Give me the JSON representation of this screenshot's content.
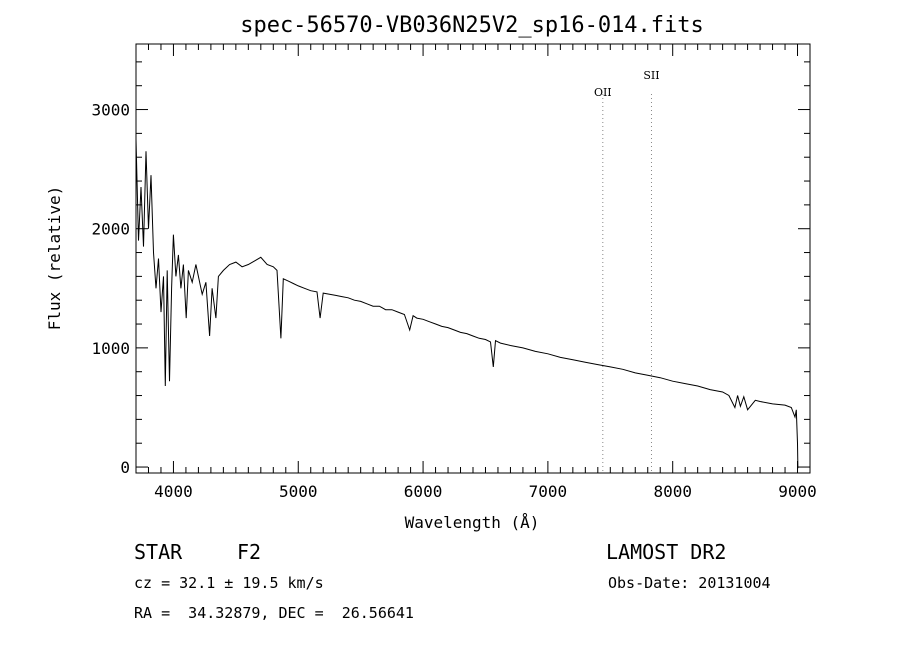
{
  "chart_data": {
    "type": "line",
    "title": "spec-56570-VB036N25V2_sp16-014.fits",
    "xlabel": "Wavelength (Å)",
    "ylabel": "Flux (relative)",
    "xlim": [
      3700,
      9100
    ],
    "ylim": [
      -50,
      3550
    ],
    "x_ticks": [
      4000,
      5000,
      6000,
      7000,
      8000,
      9000
    ],
    "y_ticks": [
      0,
      1000,
      2000,
      3000
    ],
    "grid": false,
    "series": [
      {
        "x": [
          3700,
          3720,
          3740,
          3760,
          3780,
          3800,
          3820,
          3840,
          3860,
          3880,
          3900,
          3920,
          3935,
          3950,
          3968,
          3985,
          4000,
          4020,
          4040,
          4060,
          4080,
          4102,
          4120,
          4150,
          4180,
          4200,
          4230,
          4260,
          4290,
          4310,
          4340,
          4360,
          4400,
          4450,
          4500,
          4550,
          4600,
          4650,
          4700,
          4750,
          4800,
          4830,
          4861,
          4880,
          4920,
          4960,
          5000,
          5050,
          5100,
          5150,
          5175,
          5200,
          5250,
          5300,
          5350,
          5400,
          5450,
          5500,
          5550,
          5600,
          5650,
          5700,
          5750,
          5800,
          5850,
          5893,
          5920,
          5950,
          6000,
          6050,
          6100,
          6150,
          6200,
          6250,
          6300,
          6350,
          6400,
          6450,
          6500,
          6540,
          6563,
          6580,
          6620,
          6700,
          6800,
          6900,
          7000,
          7100,
          7200,
          7300,
          7400,
          7500,
          7600,
          7700,
          7800,
          7900,
          8000,
          8100,
          8200,
          8300,
          8400,
          8450,
          8498,
          8520,
          8542,
          8570,
          8600,
          8662,
          8700,
          8800,
          8900,
          8950,
          8980,
          8990,
          9000,
          9003
        ],
        "y": [
          2750,
          1900,
          2350,
          1850,
          2650,
          2000,
          2450,
          1800,
          1500,
          1750,
          1300,
          1600,
          680,
          1650,
          720,
          1500,
          1950,
          1600,
          1780,
          1500,
          1700,
          1250,
          1650,
          1550,
          1700,
          1600,
          1450,
          1550,
          1100,
          1500,
          1250,
          1600,
          1650,
          1700,
          1720,
          1680,
          1700,
          1730,
          1760,
          1700,
          1680,
          1650,
          1080,
          1580,
          1560,
          1540,
          1520,
          1500,
          1480,
          1470,
          1250,
          1460,
          1450,
          1440,
          1430,
          1420,
          1400,
          1390,
          1370,
          1350,
          1350,
          1320,
          1320,
          1300,
          1280,
          1150,
          1270,
          1250,
          1240,
          1220,
          1200,
          1180,
          1170,
          1150,
          1130,
          1120,
          1100,
          1080,
          1070,
          1050,
          840,
          1060,
          1040,
          1020,
          1000,
          970,
          950,
          920,
          900,
          880,
          860,
          840,
          820,
          790,
          770,
          750,
          720,
          700,
          680,
          650,
          630,
          600,
          500,
          600,
          510,
          590,
          480,
          560,
          550,
          530,
          520,
          500,
          420,
          480,
          200,
          -10
        ]
      }
    ],
    "annotations": [
      {
        "label": "OII",
        "x": 7440
      },
      {
        "label": "SII",
        "x": 7830
      }
    ]
  },
  "info": {
    "class": "STAR",
    "subclass": "F2",
    "survey": "LAMOST DR2",
    "cz": "cz = 32.1 ± 19.5 km/s",
    "obs_date": "Obs-Date: 20131004",
    "radec": "RA =  34.32879, DEC =  26.56641"
  },
  "colors": {
    "line": "#000000",
    "marker_line": "#888888"
  }
}
